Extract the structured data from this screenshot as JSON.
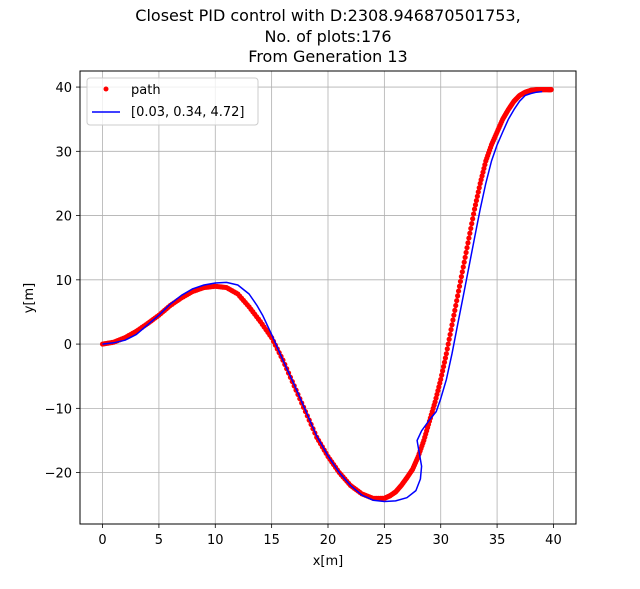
{
  "chart_data": {
    "type": "line",
    "title": [
      "Closest PID control with D:2308.946870501753,",
      "No. of plots:176",
      "From Generation 13"
    ],
    "xlabel": "x[m]",
    "ylabel": "y[m]",
    "xlim": [
      -2,
      42
    ],
    "ylim": [
      -28.0,
      42.5
    ],
    "xticks": [
      0,
      5,
      10,
      15,
      20,
      25,
      30,
      35,
      40
    ],
    "yticks": [
      -20,
      -10,
      0,
      10,
      20,
      30,
      40
    ],
    "xtick_labels": [
      "0",
      "5",
      "10",
      "15",
      "20",
      "25",
      "30",
      "35",
      "40"
    ],
    "ytick_labels": [
      "−20",
      "−10",
      "0",
      "10",
      "20",
      "30",
      "40"
    ],
    "grid": true,
    "legend_position": "top-left",
    "series": [
      {
        "name": "path",
        "style": "points",
        "color": "#ff0000",
        "x": [
          0.0,
          1.0,
          2.0,
          3.0,
          4.0,
          5.0,
          6.0,
          7.0,
          8.0,
          9.0,
          10.0,
          11.0,
          12.0,
          13.0,
          14.0,
          15.0,
          16.0,
          17.0,
          18.0,
          19.0,
          20.0,
          21.0,
          22.0,
          23.0,
          24.0,
          25.0,
          25.5,
          26.0,
          26.5,
          27.0,
          27.5,
          28.0,
          28.5,
          29.0,
          29.5,
          30.0,
          30.5,
          31.0,
          31.5,
          32.0,
          32.5,
          33.0,
          33.5,
          34.0,
          34.5,
          35.0,
          35.5,
          36.0,
          36.5,
          37.0,
          37.5,
          38.0,
          38.5,
          39.0,
          39.5,
          39.8
        ],
        "y": [
          0.0,
          0.3,
          1.0,
          2.0,
          3.2,
          4.5,
          6.0,
          7.2,
          8.2,
          8.8,
          9.0,
          8.8,
          7.8,
          5.8,
          3.5,
          1.0,
          -2.5,
          -6.5,
          -10.5,
          -14.5,
          -17.5,
          -20.0,
          -22.0,
          -23.3,
          -24.0,
          -24.0,
          -23.6,
          -23.0,
          -22.0,
          -20.8,
          -19.5,
          -17.5,
          -15.0,
          -12.0,
          -9.0,
          -5.5,
          -1.5,
          3.0,
          7.5,
          12.0,
          16.5,
          21.0,
          25.0,
          28.5,
          31.0,
          33.0,
          35.0,
          36.5,
          37.8,
          38.7,
          39.2,
          39.5,
          39.6,
          39.6,
          39.6,
          39.6
        ]
      },
      {
        "name": "[0.03, 0.34, 4.72]",
        "style": "line",
        "color": "#0000ff",
        "x": [
          0.0,
          1.0,
          2.0,
          3.0,
          4.0,
          5.0,
          6.0,
          7.0,
          8.0,
          9.0,
          10.0,
          11.0,
          12.0,
          13.0,
          13.7,
          14.2,
          15.0,
          16.0,
          17.0,
          18.0,
          19.0,
          20.0,
          21.0,
          22.0,
          23.0,
          24.0,
          25.0,
          26.0,
          27.0,
          27.8,
          28.2,
          28.3,
          28.1,
          27.9,
          28.3,
          29.0,
          29.6,
          30.0,
          30.5,
          31.0,
          31.5,
          32.0,
          32.5,
          33.0,
          33.5,
          34.0,
          34.5,
          35.0,
          35.5,
          36.0,
          36.5,
          37.0,
          37.5,
          38.0,
          38.5,
          39.0
        ],
        "y": [
          0.0,
          0.2,
          0.6,
          1.5,
          3.0,
          4.5,
          6.2,
          7.6,
          8.6,
          9.2,
          9.5,
          9.6,
          9.2,
          7.8,
          6.0,
          4.5,
          1.5,
          -2.5,
          -6.3,
          -10.3,
          -14.3,
          -17.4,
          -20.0,
          -22.0,
          -23.5,
          -24.3,
          -24.5,
          -24.4,
          -23.9,
          -22.8,
          -21.0,
          -19.0,
          -17.0,
          -15.0,
          -13.5,
          -11.8,
          -10.5,
          -8.5,
          -5.5,
          -1.5,
          3.0,
          7.5,
          12.0,
          16.5,
          21.0,
          25.0,
          28.5,
          31.0,
          33.0,
          35.0,
          36.5,
          37.8,
          38.7,
          39.0,
          39.2,
          39.3
        ]
      }
    ]
  }
}
